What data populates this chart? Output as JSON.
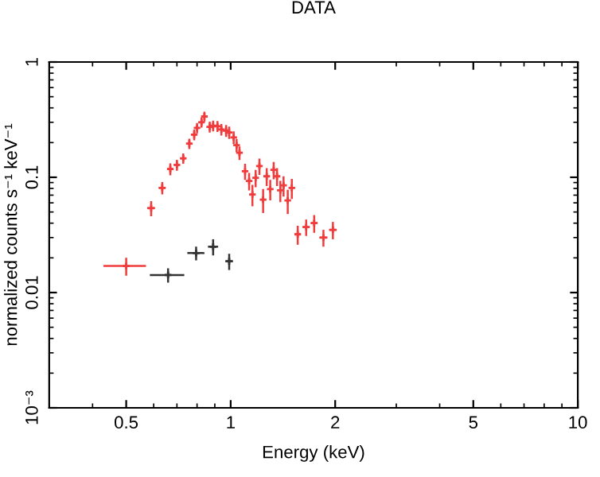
{
  "chart_data": {
    "type": "scatter",
    "title": "DATA",
    "xlabel": "Energy (keV)",
    "ylabel": "normalized counts s⁻¹ keV⁻¹",
    "log": "xy",
    "marker": "cross",
    "grid": false,
    "legend": false,
    "xlim": [
      0.3,
      10
    ],
    "xticks": [
      0.5,
      1,
      2,
      5,
      10
    ],
    "ylim": [
      0.001,
      1
    ],
    "yticks": [
      {
        "value": 0.001,
        "label": "10⁻³"
      },
      0.01,
      0.1,
      1
    ],
    "series": [
      {
        "color": "#f03c3c",
        "x": [
          0.5,
          0.59,
          0.635,
          0.67,
          0.7,
          0.73,
          0.76,
          0.785,
          0.8,
          0.824,
          0.84,
          0.87,
          0.89,
          0.916,
          0.94,
          0.97,
          0.99,
          1.02,
          1.04,
          1.06,
          1.1,
          1.13,
          1.155,
          1.18,
          1.21,
          1.24,
          1.27,
          1.3,
          1.33,
          1.36,
          1.39,
          1.42,
          1.46,
          1.5,
          1.56,
          1.65,
          1.74,
          1.85,
          1.97
        ],
        "values": [
          0.017,
          0.054,
          0.081,
          0.118,
          0.128,
          0.146,
          0.196,
          0.234,
          0.268,
          0.3,
          0.337,
          0.274,
          0.28,
          0.277,
          0.26,
          0.254,
          0.245,
          0.222,
          0.19,
          0.163,
          0.113,
          0.093,
          0.071,
          0.099,
          0.125,
          0.064,
          0.102,
          0.079,
          0.116,
          0.102,
          0.077,
          0.085,
          0.063,
          0.081,
          0.032,
          0.037,
          0.04,
          0.03,
          0.035
        ],
        "errors": [
          0.003,
          0.008,
          0.01,
          0.014,
          0.014,
          0.015,
          0.02,
          0.025,
          0.028,
          0.03,
          0.033,
          0.03,
          0.03,
          0.03,
          0.03,
          0.03,
          0.03,
          0.028,
          0.025,
          0.022,
          0.018,
          0.016,
          0.015,
          0.017,
          0.02,
          0.015,
          0.018,
          0.016,
          0.02,
          0.018,
          0.016,
          0.017,
          0.015,
          0.016,
          0.006,
          0.006,
          0.007,
          0.005,
          0.006
        ],
        "xerrors": [
          0.07,
          0.015,
          0.015,
          0.012,
          0.012,
          0.012,
          0.01,
          0.01,
          0.01,
          0.01,
          0.01,
          0.01,
          0.01,
          0.01,
          0.01,
          0.01,
          0.01,
          0.01,
          0.01,
          0.01,
          0.012,
          0.012,
          0.012,
          0.012,
          0.012,
          0.012,
          0.012,
          0.012,
          0.012,
          0.012,
          0.012,
          0.012,
          0.015,
          0.015,
          0.03,
          0.04,
          0.04,
          0.05,
          0.05
        ]
      },
      {
        "color": "#333333",
        "x": [
          0.66,
          0.795,
          0.89,
          0.99
        ],
        "values": [
          0.0142,
          0.022,
          0.025,
          0.0187
        ],
        "errors": [
          0.002,
          0.003,
          0.004,
          0.003
        ],
        "xerrors": [
          0.075,
          0.045,
          0.03,
          0.025
        ]
      }
    ]
  }
}
